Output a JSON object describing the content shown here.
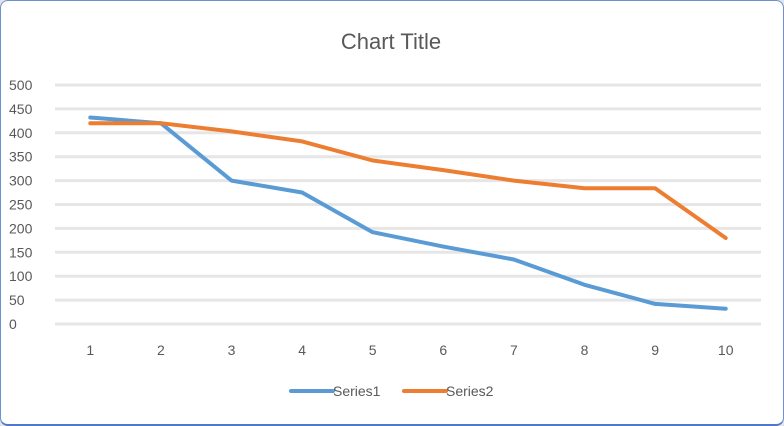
{
  "chart_data": {
    "type": "line",
    "title": "Chart Title",
    "xlabel": "",
    "ylabel": "",
    "x": [
      1,
      2,
      3,
      4,
      5,
      6,
      7,
      8,
      9,
      10
    ],
    "x_tick_labels": [
      "1",
      "2",
      "3",
      "4",
      "5",
      "6",
      "7",
      "8",
      "9",
      "10"
    ],
    "ylim": [
      0,
      500
    ],
    "y_ticks": [
      0,
      50,
      100,
      150,
      200,
      250,
      300,
      350,
      400,
      450,
      500
    ],
    "y_tick_labels": [
      "0",
      "50",
      "100",
      "150",
      "200",
      "250",
      "300",
      "350",
      "400",
      "450",
      "500"
    ],
    "grid": true,
    "legend_position": "bottom",
    "series": [
      {
        "name": "Series1",
        "color": "#5b9bd5",
        "values": [
          432,
          420,
          300,
          275,
          192,
          162,
          135,
          82,
          42,
          32
        ]
      },
      {
        "name": "Series2",
        "color": "#ed7d31",
        "values": [
          420,
          420,
          403,
          382,
          342,
          322,
          300,
          284,
          284,
          180
        ]
      }
    ]
  }
}
